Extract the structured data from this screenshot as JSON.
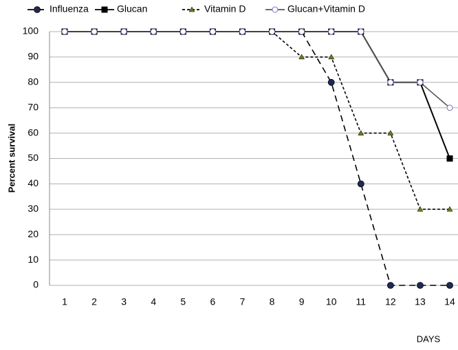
{
  "chart_data": {
    "type": "line",
    "categories": [
      "1",
      "2",
      "3",
      "4",
      "5",
      "6",
      "7",
      "8",
      "9",
      "10",
      "11",
      "12",
      "13",
      "14"
    ],
    "series": [
      {
        "name": "Influenza",
        "color": "#000000",
        "marker_color": "#1f2a55",
        "dash": "9,6",
        "marker": "circle",
        "values": [
          100,
          100,
          100,
          100,
          100,
          100,
          100,
          100,
          100,
          80,
          40,
          0,
          0,
          0
        ]
      },
      {
        "name": "Glucan",
        "color": "#000000",
        "marker_color": "#000000",
        "dash": "none",
        "marker": "square",
        "values": [
          100,
          100,
          100,
          100,
          100,
          100,
          100,
          100,
          100,
          100,
          100,
          80,
          80,
          50
        ]
      },
      {
        "name": "Vitamin D",
        "color": "#000000",
        "marker_color": "#6b7a1e",
        "dash": "4,3",
        "marker": "triangle",
        "values": [
          100,
          100,
          100,
          100,
          100,
          100,
          100,
          100,
          90,
          90,
          60,
          60,
          30,
          30
        ]
      },
      {
        "name": "Glucan+Vitamin D",
        "color": "#555555",
        "marker_color": "#7b72b8",
        "dash": "none",
        "marker": "open-circle",
        "values": [
          100,
          100,
          100,
          100,
          100,
          100,
          100,
          100,
          100,
          100,
          100,
          80,
          80,
          70
        ]
      }
    ],
    "ylabel": "Percent survival",
    "xlabel": "DAYS",
    "ylim": [
      0,
      100
    ],
    "yticks": [
      0,
      10,
      20,
      30,
      40,
      50,
      60,
      70,
      80,
      90,
      100
    ],
    "grid": true
  }
}
